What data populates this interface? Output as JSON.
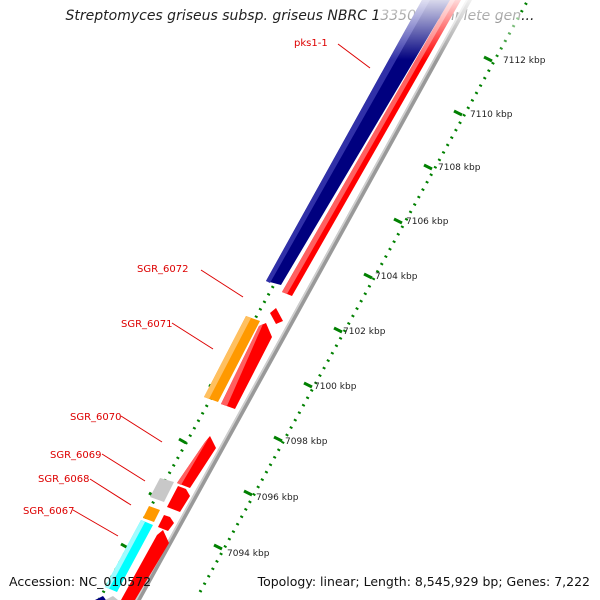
{
  "title": "Streptomyces griseus subsp. griseus NBRC 13350, complete gen...",
  "footer": {
    "accession": "Accession: NC_010572",
    "topology": "Topology: linear; Length: 8,545,929 bp; Genes: 7,222"
  },
  "colors": {
    "red": "#ff0000",
    "navy": "#00007f",
    "orange": "#ff9900",
    "cyan": "#00ffff",
    "gray": "#c8c8c8",
    "backbone": "#999999",
    "tick": "#008000",
    "label": "#dd0000"
  },
  "map_data": {
    "axis_labels": [
      "7094 kbp",
      "7096 kbp",
      "7098 kbp",
      "7100 kbp",
      "7102 kbp",
      "7104 kbp",
      "7106 kbp",
      "7108 kbp",
      "7110 kbp",
      "7112 kbp"
    ],
    "gene_labels": [
      "pks1-1",
      "SGR_6072",
      "SGR_6071",
      "SGR_6070",
      "SGR_6069",
      "SGR_6068",
      "SGR_6067"
    ]
  }
}
